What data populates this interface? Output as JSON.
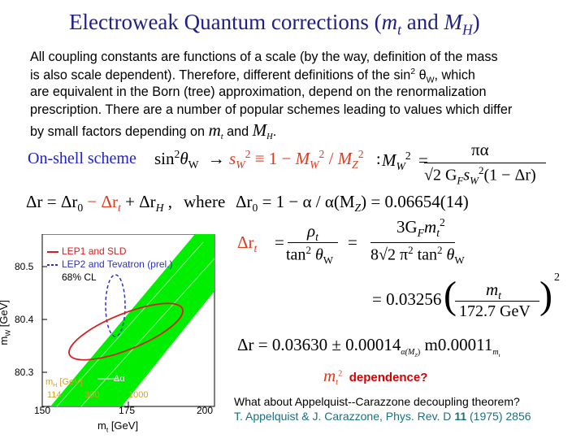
{
  "title": {
    "text": "Electroweak Quantum corrections (",
    "mt": "m",
    "mt_sub": "t",
    "and": " and ",
    "mh": "M",
    "mh_sub": "H",
    "close": ")"
  },
  "body": {
    "line1": "All coupling constants are functions of a scale (by the way, definition of the mass",
    "line2": "is also scale dependent). Therefore, different definitions of the sin",
    "line2_sup": "2",
    "line2_theta": " θ",
    "line2_sub": "W",
    "line2_end": ", which",
    "line3": "are equivalent in the Born (tree) approximation, depend on the renormalization",
    "line4": "prescription. There are a number of popular schemes leading to values which differ",
    "line5": "by small factors depending on ",
    "line5_mt": "m",
    "line5_mt_sub": "t",
    "line5_and": " and ",
    "line5_mh": "M",
    "line5_mh_sub": "H",
    "line5_end": "."
  },
  "onshell": "On-shell scheme",
  "eq1": {
    "sin": "sin",
    "sup": "2",
    "theta": "θ",
    "sub": "W",
    "arrow": "→",
    "sW": "s",
    "sW_sub": "W",
    "sW_sup": "2",
    "def": "≡ 1 −",
    "MW": "M",
    "MW_sub": "W",
    "MW_sup": "2",
    "slash": "/",
    "MZ": "M",
    "MZ_sub": "Z",
    "MZ_sup": "2",
    "colon": ":"
  },
  "eq2": {
    "lhs": "M",
    "lhs_sub": "W",
    "lhs_sup": "2",
    "eq": "=",
    "num": "πα",
    "den": "√2 G",
    "den_sub": "F",
    "den_s": "s",
    "den_s_sub": "W",
    "den_s_sup": "2",
    "den_end": "(1 − Δr)"
  },
  "eq3": {
    "dr": "Δr = Δr",
    "dr_sub0": "0",
    "minus": " − Δr",
    "sub_t": "t",
    "plus": " + Δr",
    "sub_h": "H",
    "comma": " ,",
    "where": "where",
    "dr0": "Δr",
    "dr0_sub": "0",
    "dr0_rhs": " = 1 − α / α(M",
    "dr0_mz": "Z",
    "dr0_val": ") = 0.06654(14)"
  },
  "eq4": {
    "lhs": "Δr",
    "lhs_sub": "t",
    "eq": "=",
    "num1": "ρ",
    "num1_sub": "t",
    "den1": "tan",
    "den1_sup": "2",
    "den1_theta": " θ",
    "den1_sub": "W",
    "eq2": "=",
    "num2": "3G",
    "num2_sub": "F",
    "num2_m": "m",
    "num2_m_sub": "t",
    "num2_m_sup": "2",
    "den2": "8√2 π",
    "den2_sup": "2",
    "den2_tan": " tan",
    "den2_tan_sup": "2",
    "den2_theta": " θ",
    "den2_sub": "W"
  },
  "eq5": {
    "eq": "= 0.03256",
    "num": "m",
    "num_sub": "t",
    "den": "172.7 GeV",
    "exp": "2"
  },
  "eq6": {
    "lhs": "Δr = 0.03630 ± 0.00014",
    "sub_a": "α(M",
    "sub_a_z": "Z",
    "sub_a_close": ")",
    "mid": " m0.00011",
    "sub_m": "m",
    "sub_m_t": "t"
  },
  "dep": {
    "m": "m",
    "m_sub": "t",
    "m_sup": "2",
    "text": "dependence?"
  },
  "footer": {
    "line1": "What about Appelquist--Carazzone decoupling theorem?",
    "line2_pre": "T. Appelquist & J. Carazzone, Phys. Rev. D ",
    "line2_vol": "11",
    "line2_post": " (1975) 2856"
  },
  "figure": {
    "legend1": "LEP1 and SLD",
    "legend2": "LEP2 and Tevatron (prel.)",
    "legend3": "68% CL",
    "ylabel": "m",
    "ylabel_sub": "W",
    "ylabel_unit": " [GeV]",
    "xlabel": "m",
    "xlabel_sub": "t",
    "xlabel_unit": " [GeV]",
    "yticks": [
      "80.5",
      "80.4",
      "80.3"
    ],
    "xticks": [
      "150",
      "175",
      "200"
    ],
    "mh_label": "m",
    "mh_label_sub": "H",
    "mh_label_unit": " [GeV]",
    "mh_values": [
      "114",
      "300",
      "1000"
    ],
    "dalpha": "Δα",
    "colors": {
      "band": "#00ee00",
      "ellipse_red": "#d42020",
      "ellipse_blue": "#3030c0",
      "frame": "#000000"
    }
  }
}
